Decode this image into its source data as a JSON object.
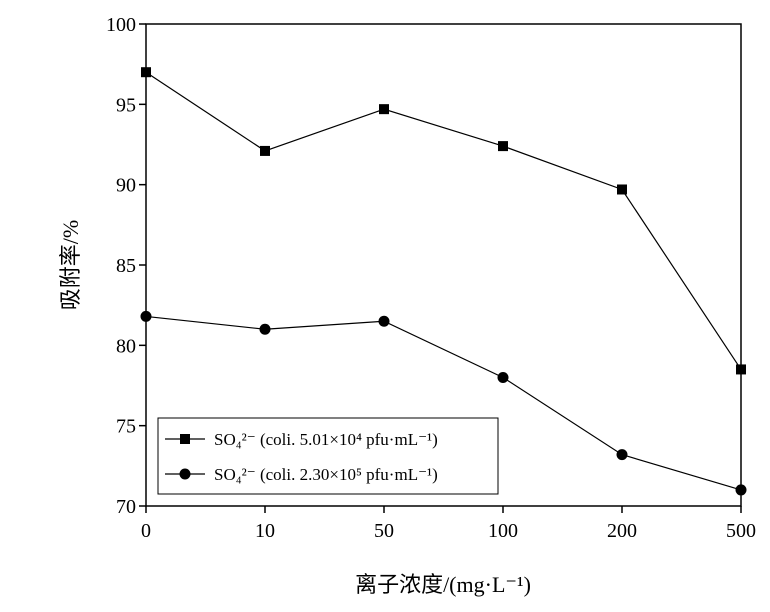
{
  "chart_data": {
    "type": "line",
    "categories": [
      "0",
      "10",
      "50",
      "100",
      "200",
      "500"
    ],
    "xlabel": "离子浓度/(mg·L⁻¹)",
    "ylabel": "吸附率/%",
    "ylim": [
      70,
      100
    ],
    "yticks": [
      70,
      75,
      80,
      85,
      90,
      95,
      100
    ],
    "grid": false,
    "legend_position": "bottom-left",
    "series": [
      {
        "name": "SO₄²⁻ (coli. 5.01×10⁴ pfu·mL⁻¹)",
        "marker": "square",
        "color": "#000000",
        "values": [
          97.0,
          92.1,
          94.7,
          92.4,
          89.7,
          78.5
        ]
      },
      {
        "name": "SO₄²⁻ (coli. 2.30×10⁵ pfu·mL⁻¹)",
        "marker": "circle",
        "color": "#000000",
        "values": [
          81.8,
          81.0,
          81.5,
          78.0,
          73.2,
          71.0
        ]
      }
    ]
  }
}
